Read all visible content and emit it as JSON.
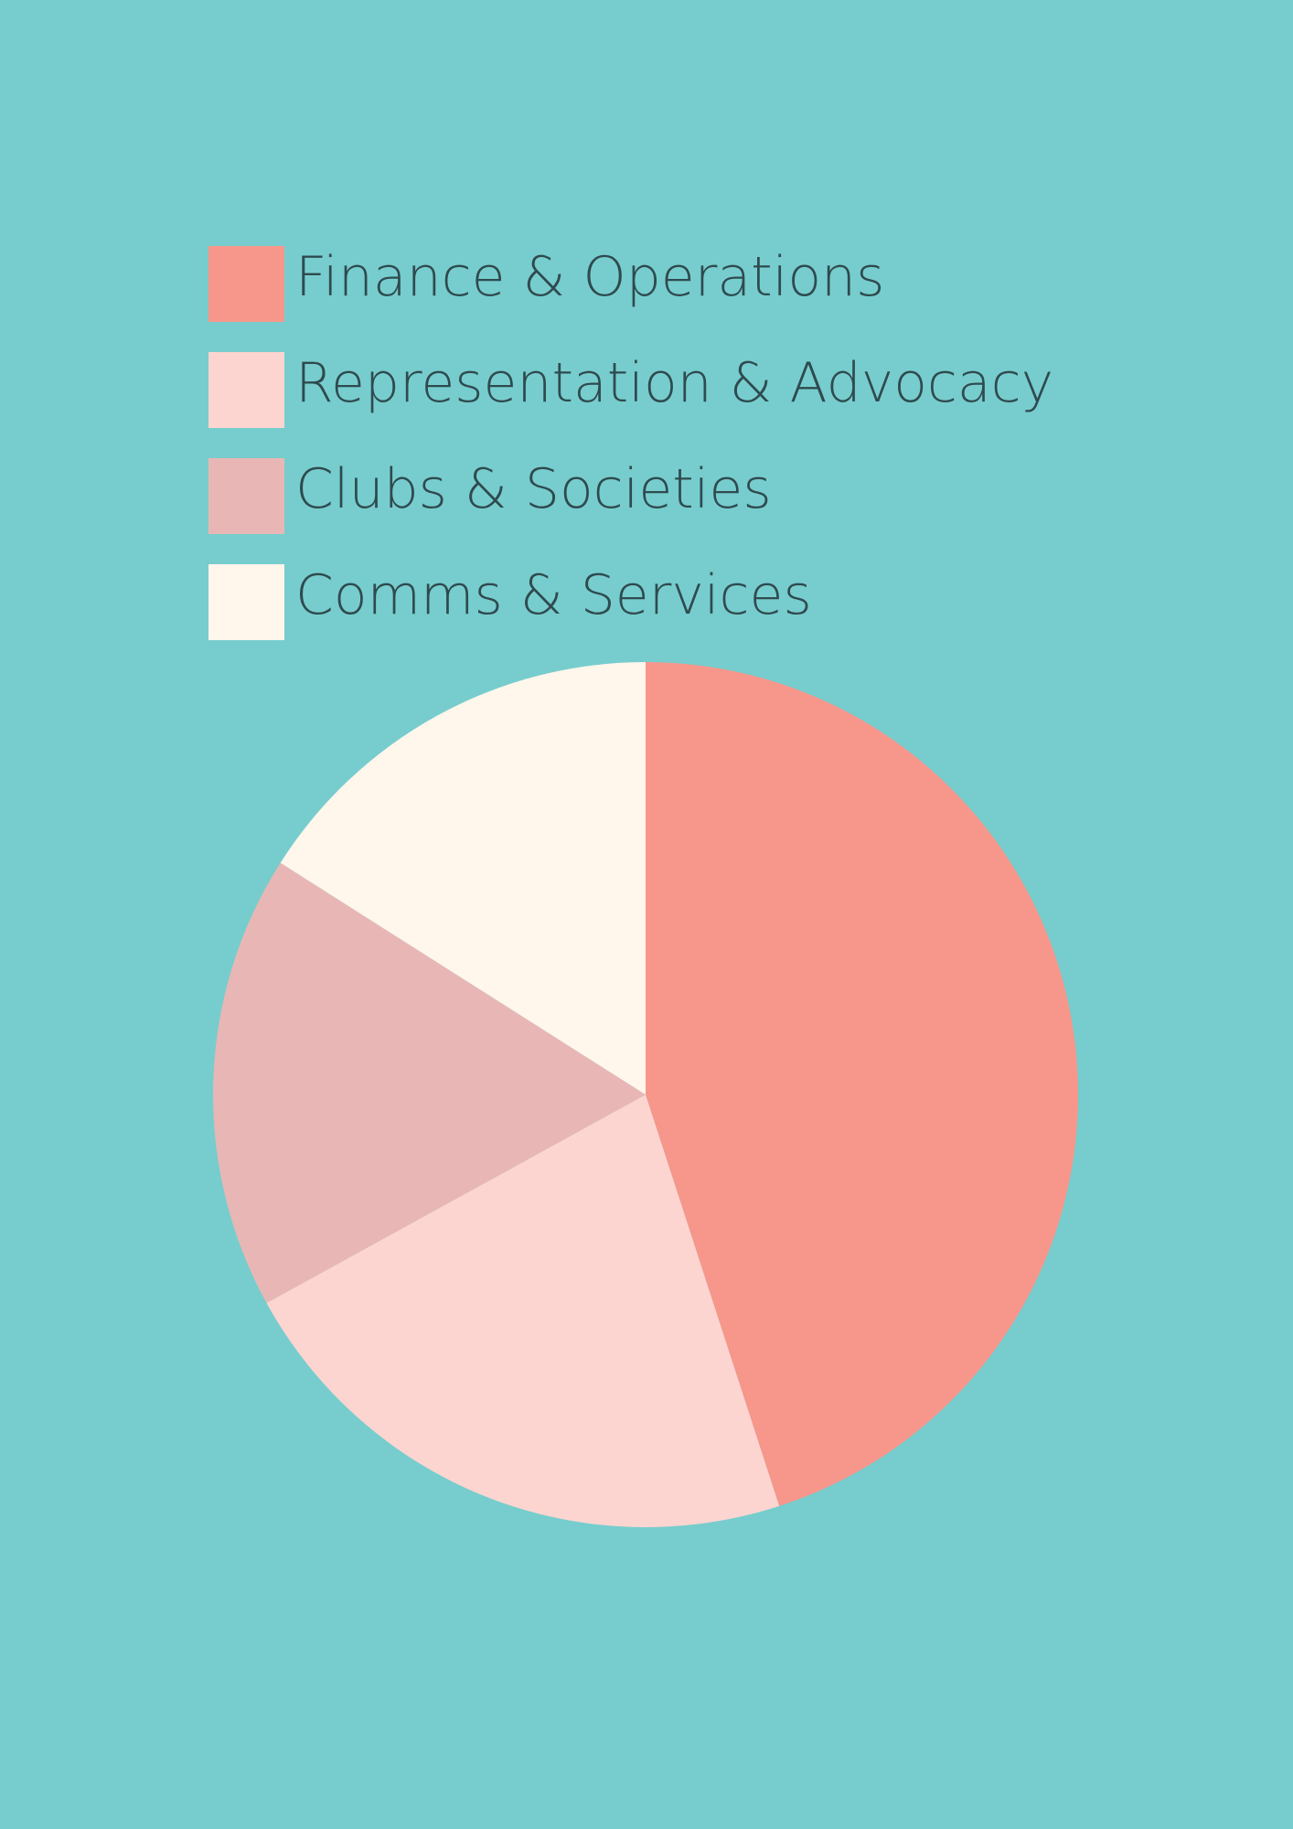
{
  "chart_data": {
    "type": "pie",
    "categories": [
      "Finance & Operations",
      "Representation & Advocacy",
      "Clubs & Societies",
      "Comms & Services"
    ],
    "values": [
      45,
      22,
      17,
      16
    ],
    "colors": [
      "#f7968b",
      "#fdd5d0",
      "#e8b7b5",
      "#fff6ec"
    ],
    "legend": "top-left"
  }
}
